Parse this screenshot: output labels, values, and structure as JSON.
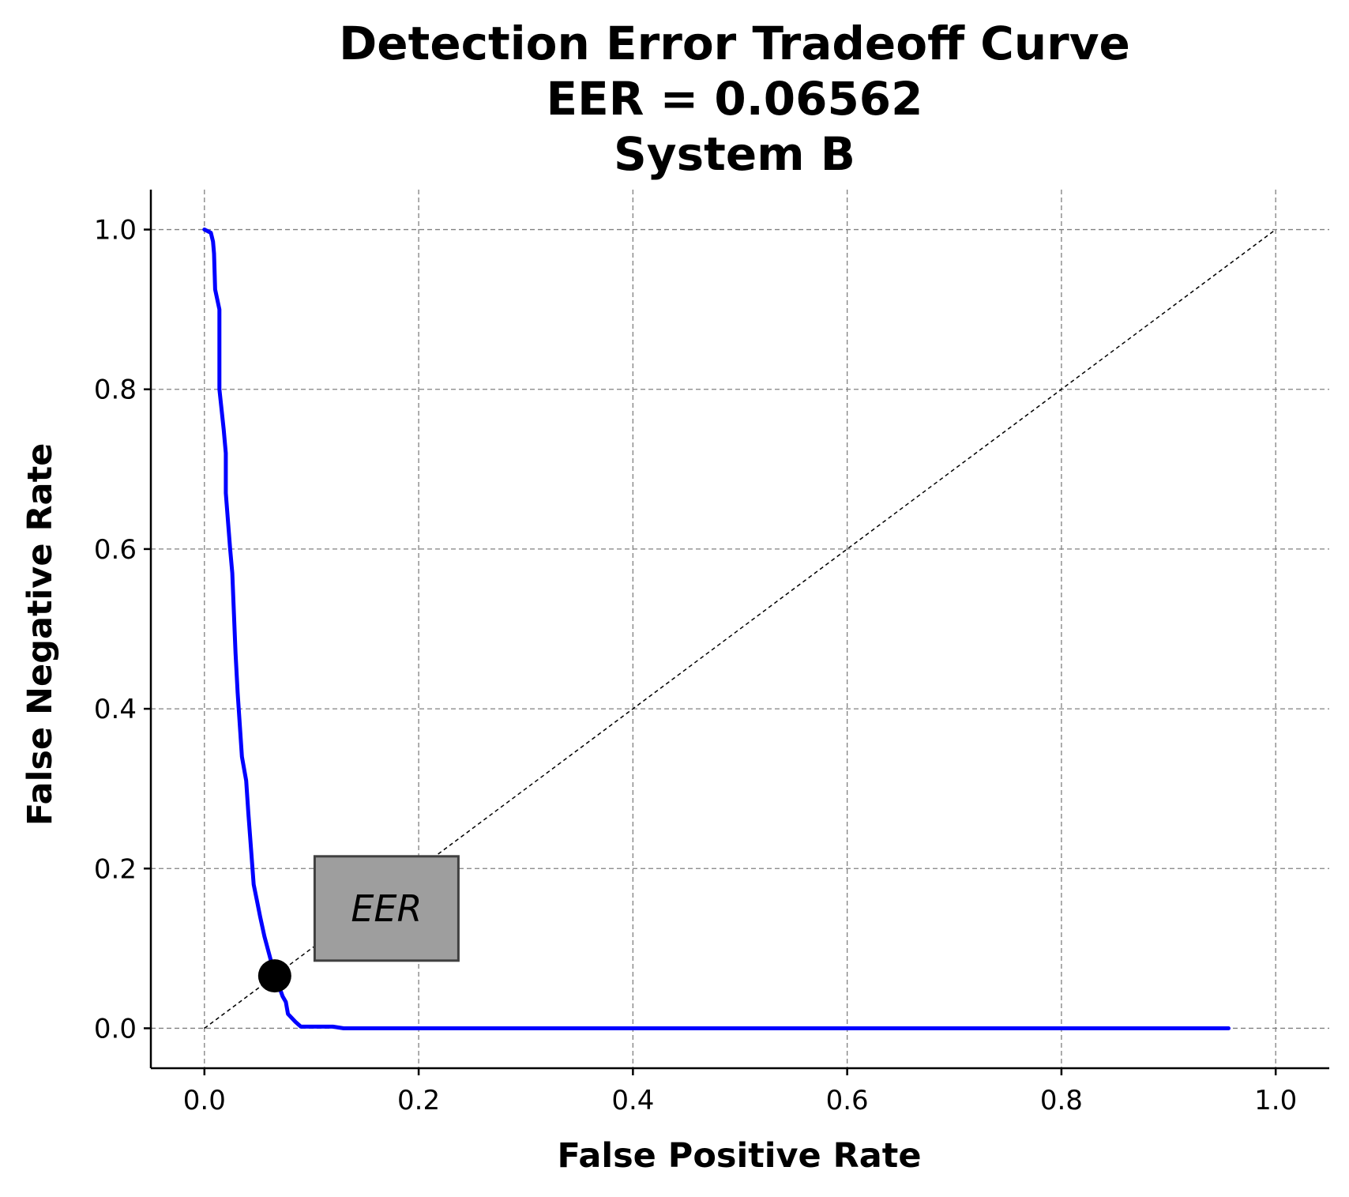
{
  "chart_data": {
    "type": "line",
    "title": [
      "Detection Error Tradeoff Curve",
      "EER = 0.06562",
      "System B"
    ],
    "xlabel": "False Positive Rate",
    "ylabel": "False Negative Rate",
    "xlim": [
      -0.05,
      1.05
    ],
    "ylim": [
      -0.05,
      1.05
    ],
    "xticks": [
      "0.0",
      "0.2",
      "0.4",
      "0.6",
      "0.8",
      "1.0"
    ],
    "yticks": [
      "0.0",
      "0.2",
      "0.4",
      "0.6",
      "0.8",
      "1.0"
    ],
    "grid": true,
    "series": [
      {
        "color": "#0000ff",
        "x": [
          0.0,
          0.006,
          0.008,
          0.009,
          0.01,
          0.014,
          0.014,
          0.018,
          0.02,
          0.02,
          0.024,
          0.026,
          0.029,
          0.031,
          0.035,
          0.039,
          0.041,
          0.046,
          0.049,
          0.052,
          0.056,
          0.06,
          0.065,
          0.069,
          0.073,
          0.076,
          0.078,
          0.085,
          0.09,
          0.095,
          0.12,
          0.13,
          0.3,
          0.5,
          0.7,
          0.956
        ],
        "y": [
          1.0,
          0.996,
          0.985,
          0.97,
          0.925,
          0.9,
          0.8,
          0.75,
          0.72,
          0.67,
          0.6,
          0.57,
          0.47,
          0.42,
          0.34,
          0.31,
          0.27,
          0.18,
          0.16,
          0.14,
          0.115,
          0.095,
          0.07,
          0.055,
          0.04,
          0.033,
          0.018,
          0.008,
          0.002,
          0.002,
          0.002,
          0.0,
          0.0,
          0.0,
          0.0,
          0.0
        ]
      },
      {
        "style": "dashed",
        "color": "#000000",
        "x": [
          0,
          1
        ],
        "y": [
          0,
          1
        ]
      }
    ],
    "marker": {
      "x": 0.06562,
      "y": 0.06562,
      "color": "#000000"
    },
    "annotation": {
      "text": "EER",
      "x": 0.17,
      "y": 0.15,
      "box_color": "#9e9e9e"
    }
  }
}
